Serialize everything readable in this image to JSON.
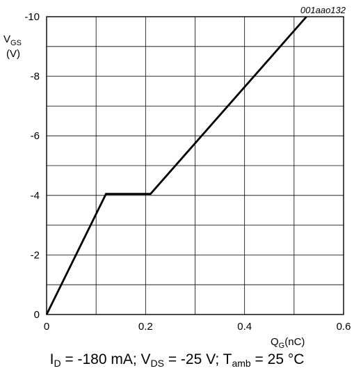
{
  "chart_data": {
    "type": "line",
    "figure_ref": "001aao132",
    "xlabel": {
      "main": "Q",
      "sub": "G",
      "unit": "(nC)"
    },
    "ylabel": {
      "main": "V",
      "sub": "GS",
      "unit": "(V)"
    },
    "xlim": [
      0,
      0.6
    ],
    "ylim": [
      0,
      -10
    ],
    "x_tick_labels": [
      "0",
      "0.2",
      "0.4",
      "0.6"
    ],
    "x_tick_values": [
      0,
      0.2,
      0.4,
      0.6
    ],
    "y_tick_labels": [
      "0",
      "-2",
      "-4",
      "-6",
      "-8",
      "-10"
    ],
    "y_tick_values": [
      0,
      -2,
      -4,
      -6,
      -8,
      -10
    ],
    "grid": true,
    "x_grid_step": 0.1,
    "y_grid_step": -1,
    "series": [
      {
        "x": [
          0,
          0.12,
          0.21,
          0.525
        ],
        "y": [
          0,
          -4.05,
          -4.05,
          -10
        ]
      }
    ],
    "conditions": {
      "id": {
        "pre": "I",
        "sub": "D",
        "post": " = -180 mA; "
      },
      "vds": {
        "pre": "V",
        "sub": "DS",
        "post": " = -25 V; "
      },
      "tamb": {
        "pre": "T",
        "sub": "amb",
        "post": " = 25 °C"
      }
    },
    "colors": {
      "line": "#000000",
      "grid": "#000000",
      "background": "#ffffff"
    }
  }
}
